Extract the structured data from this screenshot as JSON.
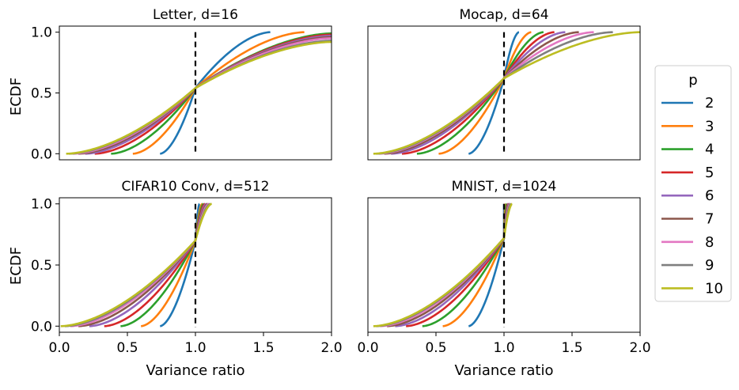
{
  "chart_data": {
    "type": "line",
    "shared_xlabel": "Variance ratio",
    "shared_ylabel": "ECDF",
    "xlim": [
      0.0,
      2.0
    ],
    "ylim": [
      -0.05,
      1.05
    ],
    "x_ticks": [
      "0.0",
      "0.5",
      "1.0",
      "1.5",
      "2.0"
    ],
    "y_ticks": [
      "0.0",
      "0.5",
      "1.0"
    ],
    "reference_line": {
      "x": 1.0,
      "style": "dashed",
      "color": "#000000"
    },
    "legend": {
      "title": "p",
      "placement": "right",
      "entries": [
        {
          "label": "2",
          "color": "#1f77b4"
        },
        {
          "label": "3",
          "color": "#ff7f0e"
        },
        {
          "label": "4",
          "color": "#2ca02c"
        },
        {
          "label": "5",
          "color": "#d62728"
        },
        {
          "label": "6",
          "color": "#9467bd"
        },
        {
          "label": "7",
          "color": "#8c564b"
        },
        {
          "label": "8",
          "color": "#e377c2"
        },
        {
          "label": "9",
          "color": "#7f7f7f"
        },
        {
          "label": "10",
          "color": "#bcbd22"
        }
      ]
    },
    "panels": [
      {
        "title": "Letter, d=16",
        "series_x_start": [
          0.74,
          0.54,
          0.38,
          0.26,
          0.19,
          0.14,
          0.1,
          0.07,
          0.05
        ],
        "cross_y": 0.54,
        "series_x_end": [
          1.55,
          1.8,
          2.0,
          2.0,
          2.0,
          2.0,
          2.0,
          2.0,
          2.0
        ],
        "y_at_xmax": [
          1.0,
          1.0,
          0.99,
          0.98,
          0.97,
          0.96,
          0.95,
          0.93,
          0.92
        ]
      },
      {
        "title": "Mocap, d=64",
        "series_x_start": [
          0.74,
          0.52,
          0.36,
          0.25,
          0.17,
          0.12,
          0.08,
          0.06,
          0.04
        ],
        "cross_y": 0.62,
        "series_x_end": [
          1.11,
          1.2,
          1.29,
          1.37,
          1.45,
          1.55,
          1.66,
          1.8,
          2.0
        ],
        "y_at_xmax": [
          1.0,
          1.0,
          1.0,
          1.0,
          1.0,
          1.0,
          1.0,
          1.0,
          1.0
        ]
      },
      {
        "title": "CIFAR10 Conv, d=512",
        "series_x_start": [
          0.74,
          0.6,
          0.45,
          0.33,
          0.22,
          0.14,
          0.08,
          0.04,
          0.01
        ],
        "cross_y": 0.7,
        "series_x_end": [
          1.03,
          1.05,
          1.06,
          1.07,
          1.08,
          1.09,
          1.1,
          1.11,
          1.12
        ],
        "y_at_xmax": [
          1.0,
          1.0,
          1.0,
          1.0,
          1.0,
          1.0,
          1.0,
          1.0,
          1.0
        ]
      },
      {
        "title": "MNIST, d=1024",
        "series_x_start": [
          0.74,
          0.55,
          0.4,
          0.28,
          0.2,
          0.14,
          0.09,
          0.06,
          0.04
        ],
        "cross_y": 0.72,
        "series_x_end": [
          1.0,
          1.01,
          1.02,
          1.03,
          1.035,
          1.04,
          1.045,
          1.05,
          1.06
        ],
        "y_at_xmax": [
          1.0,
          1.0,
          1.0,
          1.0,
          1.0,
          1.0,
          1.0,
          1.0,
          1.0
        ]
      }
    ]
  }
}
